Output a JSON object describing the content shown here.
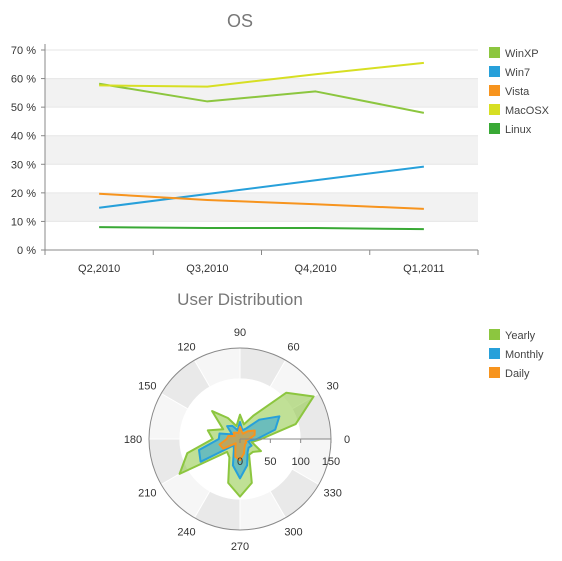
{
  "chart_data": [
    {
      "type": "line",
      "title": "OS",
      "xlabel": "",
      "ylabel": "",
      "categories": [
        "Q2,2010",
        "Q3,2010",
        "Q4,2010",
        "Q1,2011"
      ],
      "ylim": [
        0,
        70
      ],
      "yticks": [
        0,
        10,
        20,
        30,
        40,
        50,
        60,
        70
      ],
      "ytick_labels": [
        "0 %",
        "10 %",
        "20 %",
        "30 %",
        "40 %",
        "50 %",
        "60 %",
        "70 %"
      ],
      "grid": "alternating bands",
      "legend": "right",
      "series": [
        {
          "name": "WinXP",
          "color": "#8cc63f",
          "values": [
            58.2,
            52.0,
            55.5,
            48.0
          ]
        },
        {
          "name": "Win7",
          "color": "#27a0da",
          "values": [
            14.8,
            19.6,
            24.4,
            29.2
          ]
        },
        {
          "name": "Vista",
          "color": "#f7941e",
          "values": [
            19.7,
            17.5,
            16.0,
            14.4
          ]
        },
        {
          "name": "MacOSX",
          "color": "#d7df23",
          "values": [
            57.6,
            57.2,
            61.5,
            65.5
          ]
        },
        {
          "name": "Linux",
          "color": "#39a935",
          "values": [
            8.0,
            7.7,
            7.7,
            7.3
          ]
        }
      ]
    },
    {
      "type": "area",
      "projection": "polar",
      "title": "User Distribution",
      "angle_ticks": [
        0,
        30,
        60,
        90,
        120,
        150,
        180,
        210,
        240,
        270,
        300,
        330
      ],
      "angle_tick_labels": [
        "0",
        "30",
        "60",
        "90",
        "120",
        "150",
        "180",
        "210",
        "240",
        "270",
        "300",
        "330"
      ],
      "radius_ticks": [
        0,
        50,
        100,
        150
      ],
      "radius_tick_labels": [
        "0",
        "50",
        "100",
        "150"
      ],
      "rlim": [
        0,
        150
      ],
      "legend": "right",
      "angles": [
        0,
        15,
        30,
        45,
        60,
        75,
        90,
        105,
        120,
        135,
        150,
        165,
        180,
        195,
        210,
        225,
        240,
        255,
        270,
        285,
        300,
        315,
        330,
        345
      ],
      "series": [
        {
          "name": "Yearly",
          "color": "#8cc63f",
          "values": [
            35,
            95,
            140,
            108,
            45,
            25,
            40,
            22,
            40,
            65,
            32,
            55,
            45,
            90,
            115,
            30,
            35,
            75,
            95,
            75,
            30,
            30,
            40,
            20
          ]
        },
        {
          "name": "Monthly",
          "color": "#27a0da",
          "values": [
            28,
            60,
            75,
            45,
            20,
            15,
            28,
            15,
            25,
            30,
            15,
            35,
            35,
            70,
            75,
            15,
            20,
            45,
            65,
            45,
            25,
            20,
            22,
            14
          ]
        },
        {
          "name": "Daily",
          "color": "#f7941e",
          "values": [
            15,
            25,
            28,
            18,
            10,
            12,
            20,
            10,
            12,
            15,
            10,
            20,
            22,
            35,
            32,
            10,
            15,
            30,
            35,
            25,
            15,
            12,
            12,
            10
          ]
        }
      ]
    }
  ]
}
